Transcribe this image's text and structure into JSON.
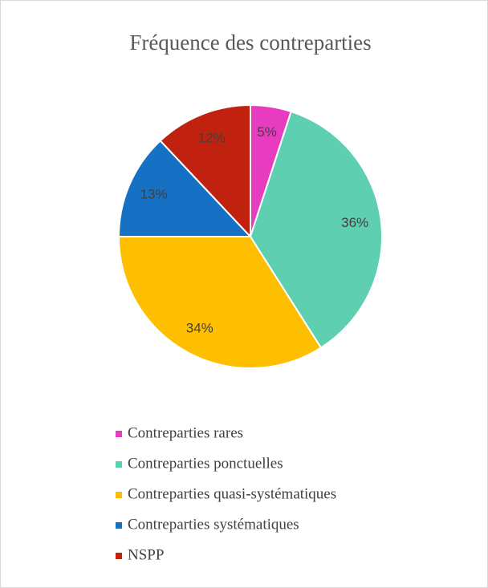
{
  "chart_data": {
    "type": "pie",
    "title": "Fréquence des contreparties",
    "categories": [
      "Contreparties rares",
      "Contreparties ponctuelles",
      "Contreparties quasi-systématiques",
      "Contreparties systématiques",
      "NSPP"
    ],
    "values": [
      5,
      36,
      34,
      13,
      12
    ],
    "value_labels": [
      "5%",
      "36%",
      "34%",
      "13%",
      "12%"
    ],
    "colors": [
      "#e83cc0",
      "#5ecfb1",
      "#fdbf00",
      "#1670c4",
      "#c0220f"
    ],
    "legend": "bottom"
  }
}
